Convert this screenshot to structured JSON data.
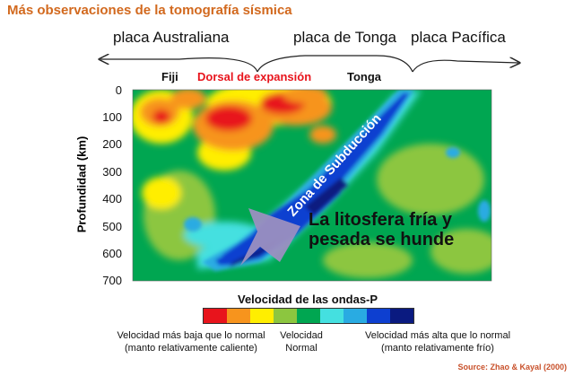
{
  "title": "Más observaciones de la tomografía sísmica",
  "plates": {
    "australiana": "placa Australiana",
    "tonga": "placa de Tonga",
    "pacifica": "placa Pacífica"
  },
  "regions": {
    "fiji": "Fiji",
    "dorsal": "Dorsal de expansión",
    "tonga": "Tonga"
  },
  "axis": {
    "ylabel": "Profundidad (km)",
    "ticks": [
      "0",
      "100",
      "200",
      "300",
      "400",
      "500",
      "600",
      "700"
    ]
  },
  "annotations": {
    "zone": "Zona de Subducción",
    "caption_line1": "La litosfera fría y",
    "caption_line2": "pesada se hunde"
  },
  "legend": {
    "title": "Velocidad de las ondas-P",
    "colors": [
      "#e8141c",
      "#f7941d",
      "#ffee00",
      "#8cc63f",
      "#00a651",
      "#44e0e0",
      "#29abe2",
      "#0d3fd0",
      "#0a1a80"
    ],
    "low_line1": "Velocidad más baja que lo normal",
    "low_line2": "(manto relativamente caliente)",
    "mid_line1": "Velocidad",
    "mid_line2": "Normal",
    "high_line1": "Velocidad más alta que lo normal",
    "high_line2": "(manto relativamente frío)"
  },
  "source": "Source: Zhao & Kayal (2000)",
  "colors": {
    "title": "#d2691e",
    "dorsal": "#e8141c",
    "arrow": "#9b8fc0"
  }
}
